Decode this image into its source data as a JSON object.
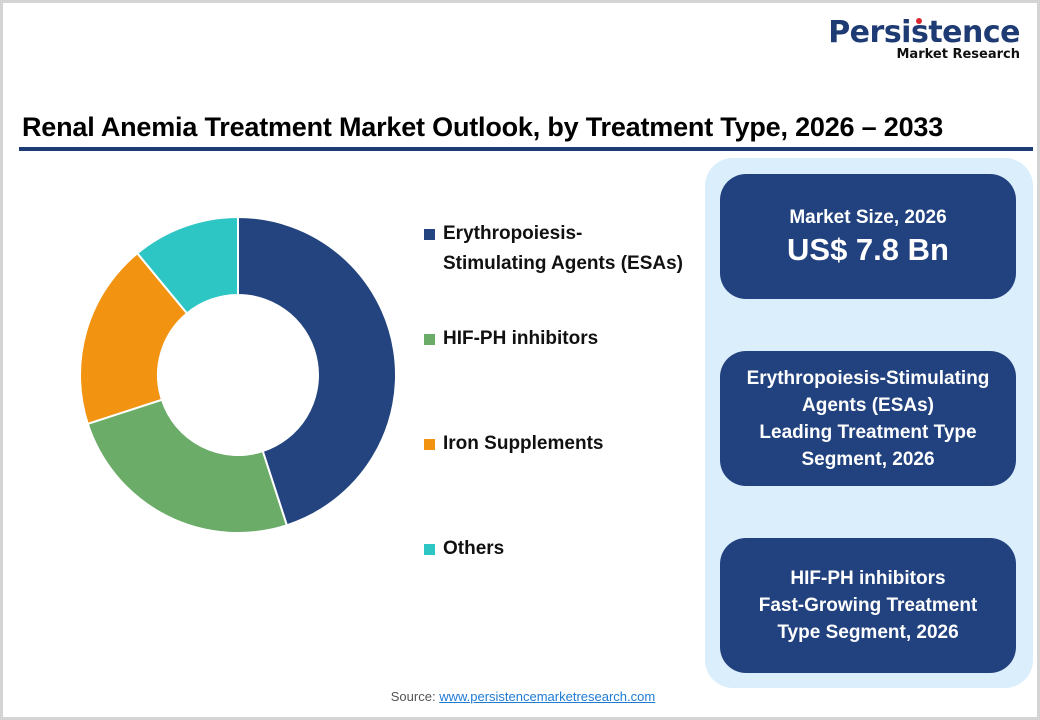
{
  "logo": {
    "main": "Persistence",
    "sub": "Market Research",
    "main_color": "#1f3b73",
    "star_color": "#d9262c"
  },
  "title": "Renal Anemia Treatment Market Outlook, by Treatment Type, 2026 – 2033",
  "title_rule_color": "#1f3b73",
  "chart_data": {
    "type": "pie",
    "subtype": "donut",
    "title": "Renal Anemia Treatment Market Outlook, by Treatment Type, 2026 – 2033",
    "categories": [
      "Erythropoiesis-Stimulating Agents (ESAs)",
      "HIF-PH inhibitors",
      "Iron Supplements",
      "Others"
    ],
    "values": [
      45,
      25,
      19,
      11
    ],
    "unit": "% share (estimated from slice angles)",
    "colors": [
      "#23447e",
      "#6aac68",
      "#f29312",
      "#2ec6c4"
    ],
    "legend_position": "right",
    "start_angle_deg": 0,
    "direction": "clockwise"
  },
  "legend": {
    "items": [
      {
        "lines": [
          "Erythropoiesis-",
          "Stimulating Agents (ESAs)"
        ],
        "color": "#23447e"
      },
      {
        "lines": [
          "HIF-PH inhibitors"
        ],
        "color": "#6aac68"
      },
      {
        "lines": [
          "Iron Supplements"
        ],
        "color": "#f29312"
      },
      {
        "lines": [
          "Others"
        ],
        "color": "#2ec6c4"
      }
    ]
  },
  "panel": {
    "background": "#dbeefc",
    "box_color": "#22427f",
    "market_size": {
      "label": "Market Size, 2026",
      "value": "US$ 7.8 Bn"
    },
    "leading": {
      "lines": [
        "Erythropoiesis-Stimulating",
        "Agents (ESAs)",
        "Leading Treatment Type",
        "Segment, 2026"
      ]
    },
    "fast_growing": {
      "lines": [
        "HIF-PH inhibitors",
        "Fast-Growing Treatment",
        "Type Segment, 2026"
      ]
    }
  },
  "source": {
    "label": "Source: ",
    "link_text": "www.persistencemarketresearch.com"
  }
}
